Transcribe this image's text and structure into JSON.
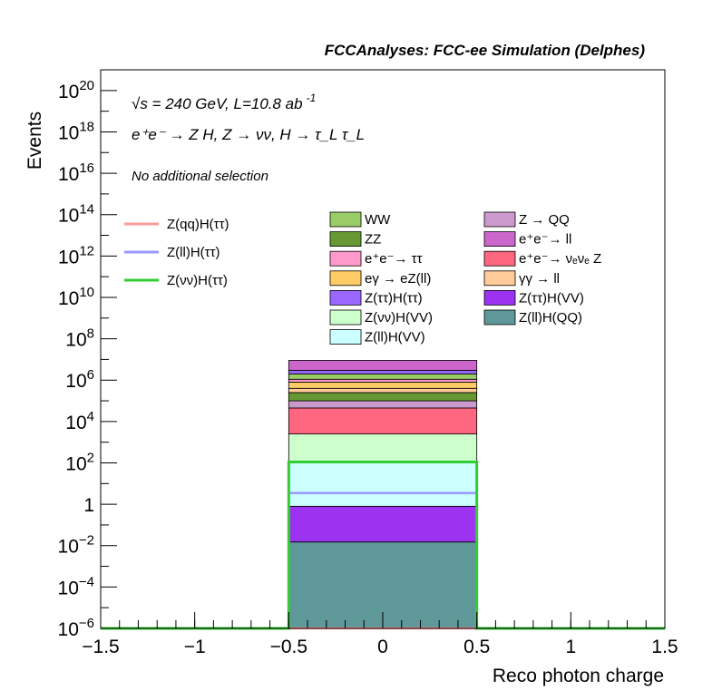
{
  "header": "FCCAnalyses: FCC-ee Simulation (Delphes)",
  "annotations": {
    "energy": "√s = 240 GeV, L=10.8 ab",
    "energy_exp": "-1",
    "process": "e⁺e⁻ → Z H, Z → νν, H → τ_L τ_L",
    "selection": "No additional selection"
  },
  "chart_data": {
    "type": "bar",
    "stacked": true,
    "xlabel": "Reco photon charge",
    "ylabel": "Events",
    "xlim": [
      -1.5,
      1.5
    ],
    "ylim": [
      1e-06,
      1e+21
    ],
    "yscale": "log",
    "xticks": [
      "−1.5",
      "−1",
      "−0.5",
      "0",
      "0.5",
      "1",
      "1.5"
    ],
    "yticks": [
      {
        "base": "10",
        "exp": "−6",
        "value": 1e-06
      },
      {
        "base": "10",
        "exp": "−4",
        "value": 0.0001
      },
      {
        "base": "10",
        "exp": "−2",
        "value": 0.01
      },
      {
        "base": "1",
        "exp": "",
        "value": 1
      },
      {
        "base": "10",
        "exp": "2",
        "value": 100.0
      },
      {
        "base": "10",
        "exp": "4",
        "value": 10000.0
      },
      {
        "base": "10",
        "exp": "6",
        "value": 1000000.0
      },
      {
        "base": "10",
        "exp": "8",
        "value": 100000000.0
      },
      {
        "base": "10",
        "exp": "10",
        "value": 10000000000.0
      },
      {
        "base": "10",
        "exp": "12",
        "value": 1000000000000.0
      },
      {
        "base": "10",
        "exp": "14",
        "value": 100000000000000.0
      },
      {
        "base": "10",
        "exp": "16",
        "value": 1e+16
      },
      {
        "base": "10",
        "exp": "18",
        "value": 1e+18
      },
      {
        "base": "10",
        "exp": "20",
        "value": 1e+20
      }
    ],
    "bin": {
      "xlow": -0.5,
      "xhigh": 0.5
    },
    "stack": [
      {
        "name": "Z(ll)H(QQ)",
        "color": "#5f9898",
        "cumulative": 0.015
      },
      {
        "name": "Z(ττ)H(VV)",
        "color": "#9b33f0",
        "cumulative": 0.8
      },
      {
        "name": "Z(ll)H(VV)",
        "color": "#ccffff",
        "cumulative": 120
      },
      {
        "name": "Z(νν)H(VV)",
        "color": "#ccffcc",
        "cumulative": 2500
      },
      {
        "name": "e⁺e⁻→ νₑνₑ Z",
        "color": "#ff6680",
        "cumulative": 45000
      },
      {
        "name": "Z → QQ",
        "color": "#cc99cc",
        "cumulative": 100000
      },
      {
        "name": "ZZ",
        "color": "#669933",
        "cumulative": 250000
      },
      {
        "name": "γγ → ll",
        "color": "#ffcc99",
        "cumulative": 400000
      },
      {
        "name": "eγ → eZ(ll)",
        "color": "#ffcc66",
        "cumulative": 800000
      },
      {
        "name": "e⁺e⁻→ ττ",
        "color": "#ff99cc",
        "cumulative": 1100000
      },
      {
        "name": "WW",
        "color": "#99cc66",
        "cumulative": 2000000
      },
      {
        "name": "Z(ττ)H(ττ)",
        "color": "#9966ff",
        "cumulative": 3000000
      },
      {
        "name": "e⁺e⁻→ ll",
        "color": "#cc66cc",
        "cumulative": 9000000
      }
    ],
    "lines": [
      {
        "name": "Z(qq)H(ττ)",
        "color": "#ff9999",
        "value": 1e-06
      },
      {
        "name": "Z(ll)H(ττ)",
        "color": "#9999ff",
        "value": 3.5
      },
      {
        "name": "Z(νν)H(ττ)",
        "color": "#33cc33",
        "value": 110
      }
    ],
    "legend_left": [
      {
        "label": "Z(qq)H(ττ)",
        "color": "#ff9999",
        "kind": "line"
      },
      {
        "label": "Z(ll)H(ττ)",
        "color": "#9999ff",
        "kind": "line"
      },
      {
        "label": "Z(νν)H(ττ)",
        "color": "#33cc33",
        "kind": "line"
      }
    ],
    "legend_col1": [
      {
        "label": "WW",
        "color": "#99cc66"
      },
      {
        "label": "ZZ",
        "color": "#669933"
      },
      {
        "label": "e⁺e⁻→ ττ",
        "color": "#ff99cc"
      },
      {
        "label": "eγ → eZ(ll)",
        "color": "#ffcc66"
      },
      {
        "label": "Z(ττ)H(ττ)",
        "color": "#9966ff"
      },
      {
        "label": "Z(νν)H(VV)",
        "color": "#ccffcc"
      },
      {
        "label": "Z(ll)H(VV)",
        "color": "#ccffff"
      }
    ],
    "legend_col2": [
      {
        "label": "Z → QQ",
        "color": "#cc99cc"
      },
      {
        "label": "e⁺e⁻→ ll",
        "color": "#cc66cc"
      },
      {
        "label": "e⁺e⁻→ νₑνₑ Z",
        "color": "#ff6680"
      },
      {
        "label": "γγ → ll",
        "color": "#ffcc99"
      },
      {
        "label": "Z(ττ)H(VV)",
        "color": "#9b33f0"
      },
      {
        "label": "Z(ll)H(QQ)",
        "color": "#5f9898"
      }
    ]
  }
}
